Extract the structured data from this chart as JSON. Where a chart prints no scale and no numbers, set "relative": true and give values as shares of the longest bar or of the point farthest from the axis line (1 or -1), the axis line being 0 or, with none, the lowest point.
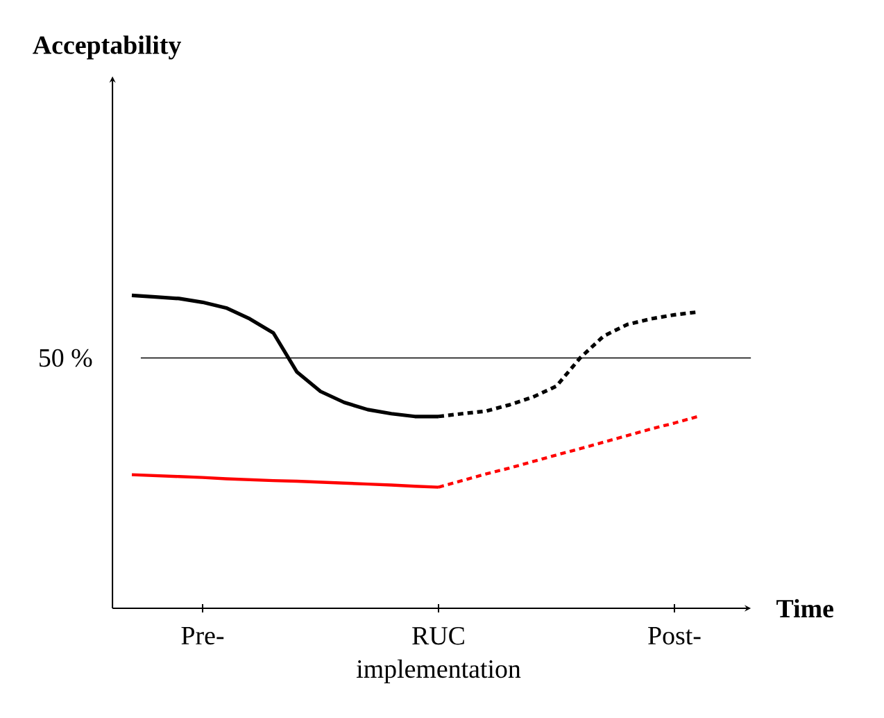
{
  "chart_data": {
    "type": "line",
    "relative": true,
    "title": "Acceptability",
    "xlabel": "Time",
    "categories": [
      null,
      null,
      null,
      "Pre-",
      null,
      null,
      null,
      null,
      null,
      null,
      null,
      null,
      null,
      "RUC implementation",
      null,
      null,
      null,
      null,
      null,
      null,
      null,
      null,
      null,
      "Post-",
      null
    ],
    "series": [
      {
        "color": "#000000",
        "line_style": "solid",
        "values": [
          1,
          0.995,
          0.99,
          0.978,
          0.96,
          0.925,
          0.88,
          0.755,
          0.693,
          0.658,
          0.635,
          0.622,
          0.613,
          0.613,
          null,
          null,
          null,
          null,
          null,
          null,
          null,
          null,
          null,
          null,
          null
        ]
      },
      {
        "color": "#000000",
        "line_style": "dotted",
        "values": [
          null,
          null,
          null,
          null,
          null,
          null,
          null,
          null,
          null,
          null,
          null,
          null,
          null,
          0.613,
          0.622,
          0.63,
          0.65,
          0.675,
          0.71,
          0.8,
          0.87,
          0.907,
          0.925,
          0.938,
          0.947
        ]
      },
      {
        "color": "#ff0000",
        "line_style": "solid",
        "values": [
          0.427,
          0.424,
          0.421,
          0.418,
          0.414,
          0.411,
          0.408,
          0.406,
          0.403,
          0.4,
          0.397,
          0.394,
          0.39,
          0.387,
          null,
          null,
          null,
          null,
          null,
          null,
          null,
          null,
          null,
          null,
          null
        ]
      },
      {
        "color": "#ff0000",
        "line_style": "dotted",
        "values": [
          null,
          null,
          null,
          null,
          null,
          null,
          null,
          null,
          null,
          null,
          null,
          null,
          null,
          0.387,
          0.408,
          0.429,
          0.448,
          0.469,
          0.49,
          0.51,
          0.531,
          0.552,
          0.573,
          0.592,
          0.613
        ]
      }
    ],
    "ref_lines": [
      {
        "axis": "y",
        "value": 0.8,
        "color": "#000000"
      }
    ],
    "annotations": [
      "50 %"
    ]
  }
}
